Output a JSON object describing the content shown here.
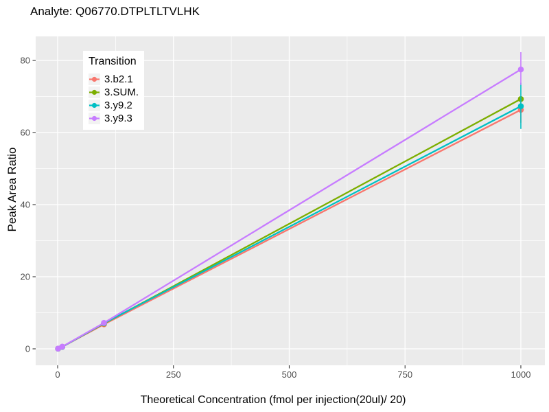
{
  "title": "Analyte: Q06770.DTPLTLTVLHK",
  "chart_data": {
    "type": "line",
    "title": "Analyte: Q06770.DTPLTLTVLHK",
    "xlabel": "Theoretical Concentration (fmol per injection(20ul)/ 20)",
    "ylabel": "Peak Area Ratio",
    "legend_title": "Transition",
    "legend_position": "inside-top-left",
    "x_ticks": [
      0,
      250,
      500,
      750,
      1000
    ],
    "y_ticks": [
      0,
      20,
      40,
      60,
      80
    ],
    "x_minor_ticks": [
      125,
      375,
      625,
      875
    ],
    "y_minor_ticks": [
      10,
      30,
      50,
      70
    ],
    "xlim": [
      -47.4,
      1051.9
    ],
    "ylim": [
      -4.57,
      86.67
    ],
    "grid": true,
    "panel_bg": "#EBEBEB",
    "grid_color": "#FFFFFF",
    "tick_label_color": "#4D4D4D",
    "tick_mark_color": "#333333",
    "series": [
      {
        "name": "3.b2.1",
        "color": "#F8766D",
        "x": [
          1,
          10,
          100,
          1000
        ],
        "y": [
          0.05,
          0.55,
          6.8,
          66.3
        ],
        "error_bars": [
          {
            "x": 1000,
            "ymin": 62.7,
            "ymax": 69.8
          }
        ]
      },
      {
        "name": "3.SUM.",
        "color": "#7CAE00",
        "x": [
          1,
          10,
          100,
          1000
        ],
        "y": [
          0.05,
          0.57,
          7.0,
          69.3
        ],
        "error_bars": []
      },
      {
        "name": "3.y9.2",
        "color": "#00BFC4",
        "x": [
          1,
          10,
          100,
          1000
        ],
        "y": [
          0.05,
          0.55,
          7.1,
          67.3
        ],
        "error_bars": [
          {
            "x": 1000,
            "ymin": 61.0,
            "ymax": 73.8
          }
        ]
      },
      {
        "name": "3.y9.3",
        "color": "#C77CFF",
        "x": [
          1,
          10,
          100,
          1000
        ],
        "y": [
          0.06,
          0.6,
          7.2,
          77.5
        ],
        "error_bars": [
          {
            "x": 1000,
            "ymin": 73.2,
            "ymax": 82.3
          }
        ]
      }
    ]
  }
}
